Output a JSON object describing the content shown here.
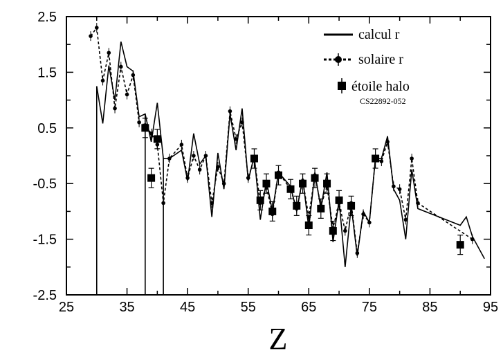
{
  "chart_data": {
    "type": "line",
    "xlabel": "Z",
    "ylabel": "",
    "xlim": [
      25,
      95
    ],
    "ylim": [
      -2.5,
      2.5
    ],
    "xticks": [
      25,
      35,
      45,
      55,
      65,
      75,
      85,
      95
    ],
    "yticks": [
      2.5,
      1.5,
      0.5,
      -0.5,
      -1.5,
      -2.5
    ],
    "xtick_labels": [
      "25",
      "35",
      "45",
      "55",
      "65",
      "75",
      "85",
      "95"
    ],
    "ytick_labels": [
      "2.5",
      "1.5",
      "0.5",
      "-0.5",
      "-1.5",
      "-2.5"
    ],
    "grid": false,
    "legend_position": "top-right",
    "series": [
      {
        "name": "calcul r",
        "style": "solid",
        "x": [
          30,
          31,
          32,
          33,
          34,
          35,
          36,
          37,
          38,
          39,
          40,
          41,
          42,
          44,
          45,
          46,
          47,
          48,
          49,
          50,
          51,
          52,
          53,
          54,
          55,
          56,
          57,
          58,
          59,
          60,
          62,
          63,
          64,
          65,
          66,
          67,
          68,
          69,
          70,
          71,
          72,
          73,
          74,
          75,
          76,
          77,
          78,
          79,
          80,
          81,
          82,
          83,
          90,
          91,
          92,
          94
        ],
        "y": [
          1.25,
          0.58,
          1.62,
          1.0,
          2.05,
          1.6,
          1.52,
          0.7,
          0.75,
          0.25,
          0.95,
          -0.05,
          -0.05,
          0.1,
          -0.45,
          0.4,
          -0.15,
          0.0,
          -1.1,
          0.05,
          -0.6,
          0.75,
          0.1,
          0.85,
          -0.45,
          0.0,
          -1.15,
          -0.45,
          -1.0,
          -0.3,
          -0.55,
          -1.0,
          -0.4,
          -1.3,
          -0.3,
          -0.95,
          -0.3,
          -1.55,
          -0.8,
          -2.0,
          -0.9,
          -1.8,
          -1.0,
          -1.2,
          -0.05,
          -0.05,
          0.35,
          -0.6,
          -0.8,
          -1.5,
          -0.25,
          -0.95,
          -1.25,
          -1.1,
          -1.45,
          -1.85
        ]
      },
      {
        "name": "solaire r",
        "style": "dashed",
        "x": [
          29,
          30,
          31,
          32,
          33,
          34,
          35,
          36,
          37,
          38,
          39,
          40,
          41,
          42,
          44,
          45,
          46,
          47,
          48,
          49,
          50,
          51,
          52,
          53,
          54,
          55,
          56,
          57,
          58,
          59,
          60,
          62,
          63,
          64,
          65,
          66,
          67,
          68,
          69,
          70,
          71,
          72,
          73,
          74,
          75,
          76,
          77,
          78,
          79,
          80,
          81,
          82,
          83,
          92
        ],
        "y": [
          2.15,
          2.3,
          1.35,
          1.85,
          0.85,
          1.6,
          1.1,
          1.45,
          0.6,
          0.55,
          0.4,
          0.2,
          -0.85,
          -0.05,
          0.2,
          -0.4,
          0.0,
          -0.25,
          0.0,
          -0.85,
          -0.2,
          -0.5,
          0.8,
          0.3,
          0.6,
          -0.4,
          -0.05,
          -0.85,
          -0.55,
          -1.05,
          -0.3,
          -0.6,
          -0.95,
          -0.45,
          -1.1,
          -0.35,
          -0.9,
          -0.55,
          -1.3,
          -0.85,
          -1.35,
          -0.85,
          -1.75,
          -1.05,
          -1.2,
          -0.05,
          -0.1,
          0.25,
          -0.55,
          -0.6,
          -1.15,
          -0.05,
          -0.85,
          -1.5
        ]
      },
      {
        "name": "étoile halo",
        "subtitle": "CS22892-052",
        "style": "markers",
        "x": [
          38,
          39,
          40,
          56,
          57,
          58,
          59,
          60,
          62,
          63,
          64,
          65,
          66,
          67,
          68,
          69,
          70,
          72,
          76,
          90
        ],
        "y": [
          0.5,
          -0.4,
          0.3,
          -0.05,
          -0.8,
          -0.5,
          -1.0,
          -0.35,
          -0.6,
          -0.9,
          -0.5,
          -1.25,
          -0.4,
          -0.95,
          -0.5,
          -1.35,
          -0.8,
          -0.9,
          -0.05,
          -1.6
        ]
      }
    ]
  }
}
